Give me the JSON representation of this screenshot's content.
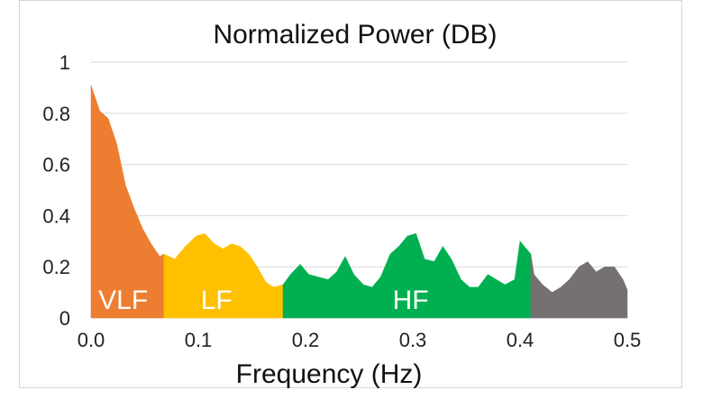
{
  "chart_data": {
    "type": "area",
    "title": "Normalized Power (DB)",
    "xlabel": "Frequency (Hz)",
    "ylabel": "",
    "xlim": [
      0.0,
      0.5
    ],
    "ylim": [
      0,
      1
    ],
    "x_ticks": [
      "0.0",
      "0.1",
      "0.2",
      "0.3",
      "0.4",
      "0.5"
    ],
    "y_ticks": [
      "0",
      "0.2",
      "0.4",
      "0.6",
      "0.8",
      "1"
    ],
    "grid": true,
    "series": [
      {
        "name": "VLF",
        "color": "#ED7D31",
        "points": [
          [
            0.0,
            0.91
          ],
          [
            0.008,
            0.81
          ],
          [
            0.016,
            0.78
          ],
          [
            0.024,
            0.68
          ],
          [
            0.032,
            0.52
          ],
          [
            0.04,
            0.43
          ],
          [
            0.048,
            0.35
          ],
          [
            0.056,
            0.29
          ],
          [
            0.064,
            0.24
          ],
          [
            0.068,
            0.25
          ]
        ]
      },
      {
        "name": "LF",
        "color": "#FFC000",
        "points": [
          [
            0.068,
            0.25
          ],
          [
            0.078,
            0.23
          ],
          [
            0.088,
            0.28
          ],
          [
            0.098,
            0.32
          ],
          [
            0.106,
            0.33
          ],
          [
            0.115,
            0.29
          ],
          [
            0.123,
            0.27
          ],
          [
            0.131,
            0.29
          ],
          [
            0.139,
            0.28
          ],
          [
            0.147,
            0.25
          ],
          [
            0.155,
            0.2
          ],
          [
            0.163,
            0.14
          ],
          [
            0.17,
            0.12
          ],
          [
            0.179,
            0.13
          ]
        ]
      },
      {
        "name": "HF",
        "color": "#00B050",
        "points": [
          [
            0.179,
            0.13
          ],
          [
            0.186,
            0.17
          ],
          [
            0.195,
            0.21
          ],
          [
            0.203,
            0.17
          ],
          [
            0.212,
            0.16
          ],
          [
            0.221,
            0.15
          ],
          [
            0.229,
            0.18
          ],
          [
            0.237,
            0.24
          ],
          [
            0.245,
            0.17
          ],
          [
            0.254,
            0.13
          ],
          [
            0.262,
            0.12
          ],
          [
            0.27,
            0.16
          ],
          [
            0.279,
            0.25
          ],
          [
            0.287,
            0.28
          ],
          [
            0.295,
            0.32
          ],
          [
            0.303,
            0.33
          ],
          [
            0.311,
            0.23
          ],
          [
            0.32,
            0.22
          ],
          [
            0.328,
            0.28
          ],
          [
            0.336,
            0.23
          ],
          [
            0.345,
            0.15
          ],
          [
            0.353,
            0.12
          ],
          [
            0.361,
            0.12
          ],
          [
            0.37,
            0.17
          ],
          [
            0.378,
            0.15
          ],
          [
            0.386,
            0.13
          ],
          [
            0.395,
            0.15
          ],
          [
            0.4,
            0.3
          ],
          [
            0.41,
            0.25
          ]
        ]
      },
      {
        "name": "",
        "color": "#767171",
        "points": [
          [
            0.41,
            0.25
          ],
          [
            0.413,
            0.17
          ],
          [
            0.421,
            0.13
          ],
          [
            0.43,
            0.1
          ],
          [
            0.438,
            0.12
          ],
          [
            0.446,
            0.15
          ],
          [
            0.455,
            0.2
          ],
          [
            0.463,
            0.22
          ],
          [
            0.471,
            0.18
          ],
          [
            0.479,
            0.2
          ],
          [
            0.488,
            0.2
          ],
          [
            0.496,
            0.15
          ],
          [
            0.5,
            0.11
          ]
        ]
      }
    ],
    "annotations": [
      {
        "text": "VLF",
        "x": 0.03,
        "y": 0.07
      },
      {
        "text": "LF",
        "x": 0.117,
        "y": 0.07
      },
      {
        "text": "HF",
        "x": 0.298,
        "y": 0.07
      }
    ]
  }
}
